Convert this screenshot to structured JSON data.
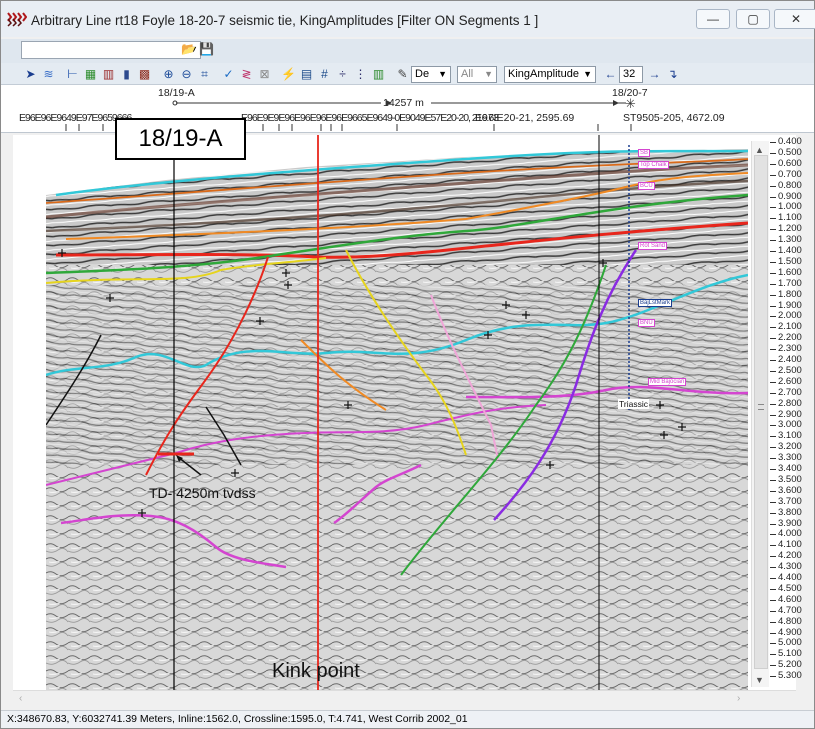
{
  "window": {
    "title": "Arbitrary Line rt18 Foyle 18-20-7 seismic tie, KingAmplitudes [Filter ON Segments 1 ]",
    "minimize": "—",
    "maximize": "▢",
    "close": "✕"
  },
  "toolbar2": {
    "display_select": "De",
    "filter_select": "All",
    "attribute_select": "KingAmplitude",
    "page_value": "32"
  },
  "nav": {
    "left_well": "18/19-A",
    "right_well": "18/20-7",
    "distance": "14257 m",
    "segment_labels": "E96E96E9649E97E9659666",
    "mid_labels": "E96E9E9E96E96E96E96E9665E9649-0E9049E57E20-20, 216.63",
    "point_a": "E97IE20-21, 2595.69",
    "point_b": "ST9505-205, 4672.09"
  },
  "annotations": {
    "well_callout": "18/19-A",
    "td_label": "TD- 4250m tvdss",
    "kink_label": "Kink point"
  },
  "horizon_labels": [
    "SB",
    "Top Chalk",
    "BCU",
    "Rot Sand",
    "BajLstMark",
    "BNU",
    "Mid Bajocian",
    "Triassic"
  ],
  "time_axis": [
    "0.400",
    "0.500",
    "0.600",
    "0.700",
    "0.800",
    "0.900",
    "1.000",
    "1.100",
    "1.200",
    "1.300",
    "1.400",
    "1.500",
    "1.600",
    "1.700",
    "1.800",
    "1.900",
    "2.000",
    "2.100",
    "2.200",
    "2.300",
    "2.400",
    "2.500",
    "2.600",
    "2.700",
    "2.800",
    "2.900",
    "3.000",
    "3.100",
    "3.200",
    "3.300",
    "3.400",
    "3.500",
    "3.600",
    "3.700",
    "3.800",
    "3.900",
    "4.000",
    "4.100",
    "4.200",
    "4.300",
    "4.400",
    "4.500",
    "4.600",
    "4.700",
    "4.800",
    "4.900",
    "5.000",
    "5.100",
    "5.200",
    "5.300"
  ],
  "status": "X:348670.83, Y:6032741.39 Meters,  Inline:1562.0,  Crossline:1595.0,  T:4.741,  West Corrib 2002_01",
  "colors": {
    "title_bg": "#e9eef4",
    "horizon_cyan": "#32c8d8",
    "horizon_red": "#e8261c",
    "horizon_green": "#2fa83a",
    "horizon_orange": "#f08a24",
    "horizon_magenta": "#d445d0",
    "fault_yellow": "#e6d41e",
    "fault_purple": "#8a2be2"
  }
}
